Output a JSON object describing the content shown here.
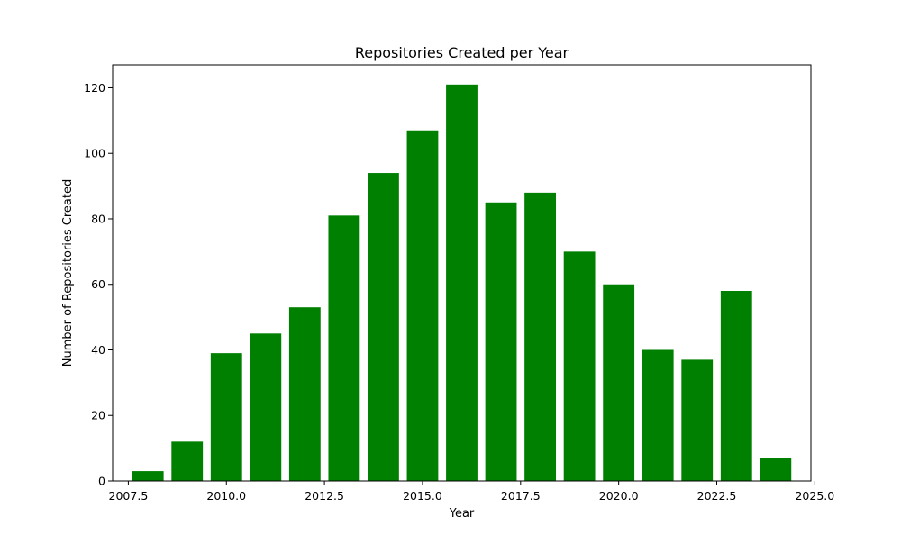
{
  "chart_data": {
    "type": "bar",
    "title": "Repositories Created per Year",
    "xlabel": "Year",
    "ylabel": "Number of Repositories Created",
    "x": [
      2008,
      2009,
      2010,
      2011,
      2012,
      2013,
      2014,
      2015,
      2016,
      2017,
      2018,
      2019,
      2020,
      2021,
      2022,
      2023,
      2024
    ],
    "values": [
      3,
      12,
      39,
      45,
      53,
      81,
      94,
      107,
      121,
      85,
      88,
      70,
      60,
      40,
      37,
      58,
      7
    ],
    "xlim": [
      2007.1,
      2024.9
    ],
    "ylim": [
      0,
      127
    ],
    "x_ticks": [
      2007.5,
      2010.0,
      2012.5,
      2015.0,
      2017.5,
      2020.0,
      2022.5,
      2025.0
    ],
    "x_tick_labels": [
      "2007.5",
      "2010.0",
      "2012.5",
      "2015.0",
      "2017.5",
      "2020.0",
      "2022.5",
      "2025.0"
    ],
    "y_ticks": [
      0,
      20,
      40,
      60,
      80,
      100,
      120
    ],
    "y_tick_labels": [
      "0",
      "20",
      "40",
      "60",
      "80",
      "100",
      "120"
    ],
    "bar_width": 0.8,
    "bar_color": "#008000",
    "grid": false,
    "legend": "none"
  }
}
